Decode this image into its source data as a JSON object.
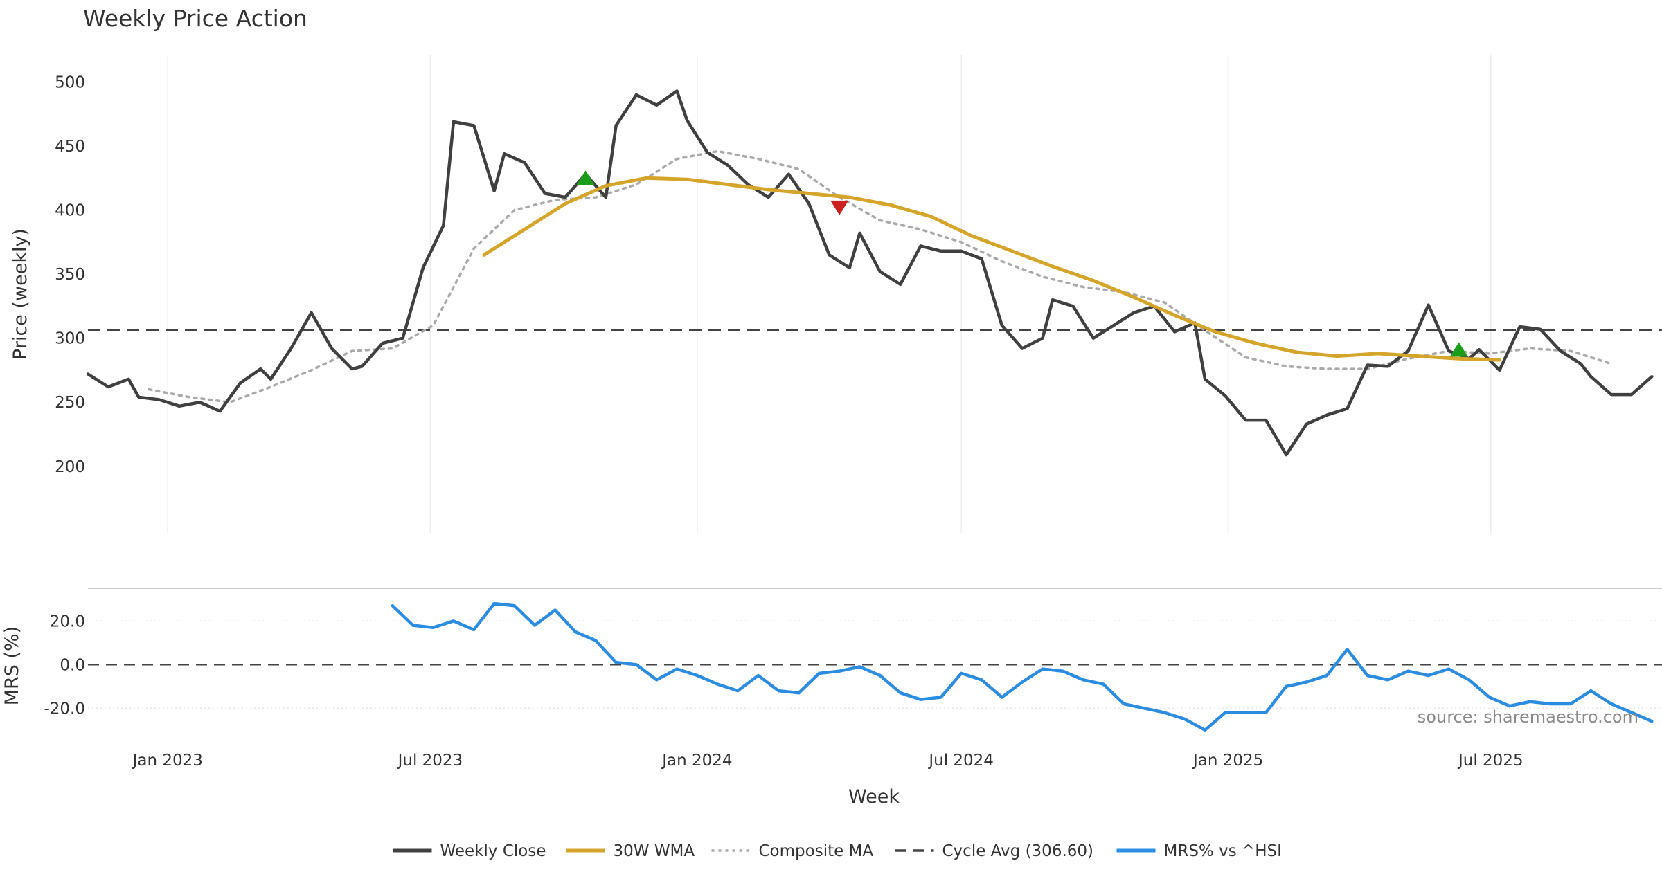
{
  "chart_data": {
    "type": "line",
    "title": "Weekly Price Action",
    "xlabel": "Week",
    "x_range": [
      "2022-11-07",
      "2025-10-27"
    ],
    "x_ticks": [
      {
        "date": "2023-01-01",
        "label": "Jan 2023"
      },
      {
        "date": "2023-07-01",
        "label": "Jul 2023"
      },
      {
        "date": "2024-01-01",
        "label": "Jan 2024"
      },
      {
        "date": "2024-07-01",
        "label": "Jul 2024"
      },
      {
        "date": "2025-01-01",
        "label": "Jan 2025"
      },
      {
        "date": "2025-07-01",
        "label": "Jul 2025"
      }
    ],
    "grid": true,
    "legend_placement": "bottom-center",
    "source": "source: sharemaestro.com",
    "price_panel": {
      "ylabel": "Price (weekly)",
      "ylim": [
        148,
        510
      ],
      "yticks": [
        200,
        250,
        300,
        350,
        400,
        450,
        500
      ],
      "cycle_avg": 306.6,
      "weekly_close": [
        [
          "2022-11-07",
          272
        ],
        [
          "2022-11-21",
          262
        ],
        [
          "2022-12-05",
          268
        ],
        [
          "2022-12-12",
          254
        ],
        [
          "2022-12-26",
          252
        ],
        [
          "2023-01-09",
          247
        ],
        [
          "2023-01-23",
          250
        ],
        [
          "2023-02-06",
          243
        ],
        [
          "2023-02-20",
          265
        ],
        [
          "2023-03-06",
          276
        ],
        [
          "2023-03-13",
          268
        ],
        [
          "2023-03-27",
          292
        ],
        [
          "2023-04-10",
          320
        ],
        [
          "2023-04-24",
          292
        ],
        [
          "2023-05-08",
          276
        ],
        [
          "2023-05-15",
          278
        ],
        [
          "2023-05-29",
          296
        ],
        [
          "2023-06-12",
          300
        ],
        [
          "2023-06-26",
          355
        ],
        [
          "2023-07-10",
          388
        ],
        [
          "2023-07-17",
          469
        ],
        [
          "2023-07-31",
          466
        ],
        [
          "2023-08-14",
          415
        ],
        [
          "2023-08-21",
          444
        ],
        [
          "2023-09-04",
          437
        ],
        [
          "2023-09-18",
          413
        ],
        [
          "2023-10-02",
          410
        ],
        [
          "2023-10-16",
          428
        ],
        [
          "2023-10-30",
          410
        ],
        [
          "2023-11-06",
          466
        ],
        [
          "2023-11-20",
          490
        ],
        [
          "2023-12-04",
          482
        ],
        [
          "2023-12-18",
          493
        ],
        [
          "2023-12-25",
          470
        ],
        [
          "2024-01-08",
          445
        ],
        [
          "2024-01-22",
          435
        ],
        [
          "2024-02-05",
          420
        ],
        [
          "2024-02-19",
          410
        ],
        [
          "2024-03-04",
          428
        ],
        [
          "2024-03-18",
          405
        ],
        [
          "2024-04-01",
          365
        ],
        [
          "2024-04-15",
          355
        ],
        [
          "2024-04-22",
          382
        ],
        [
          "2024-05-06",
          352
        ],
        [
          "2024-05-20",
          342
        ],
        [
          "2024-06-03",
          372
        ],
        [
          "2024-06-17",
          368
        ],
        [
          "2024-07-01",
          368
        ],
        [
          "2024-07-15",
          362
        ],
        [
          "2024-07-29",
          310
        ],
        [
          "2024-08-12",
          292
        ],
        [
          "2024-08-26",
          300
        ],
        [
          "2024-09-02",
          330
        ],
        [
          "2024-09-16",
          325
        ],
        [
          "2024-09-30",
          300
        ],
        [
          "2024-10-14",
          310
        ],
        [
          "2024-10-28",
          320
        ],
        [
          "2024-11-11",
          325
        ],
        [
          "2024-11-25",
          305
        ],
        [
          "2024-12-09",
          312
        ],
        [
          "2024-12-16",
          268
        ],
        [
          "2024-12-30",
          255
        ],
        [
          "2025-01-13",
          236
        ],
        [
          "2025-01-27",
          236
        ],
        [
          "2025-02-10",
          209
        ],
        [
          "2025-02-24",
          233
        ],
        [
          "2025-03-10",
          240
        ],
        [
          "2025-03-24",
          245
        ],
        [
          "2025-04-07",
          279
        ],
        [
          "2025-04-21",
          278
        ],
        [
          "2025-05-05",
          290
        ],
        [
          "2025-05-19",
          326
        ],
        [
          "2025-06-02",
          290
        ],
        [
          "2025-06-16",
          284
        ],
        [
          "2025-06-23",
          291
        ],
        [
          "2025-07-07",
          275
        ],
        [
          "2025-07-21",
          309
        ],
        [
          "2025-08-04",
          307
        ],
        [
          "2025-08-18",
          290
        ],
        [
          "2025-09-01",
          280
        ],
        [
          "2025-09-08",
          270
        ],
        [
          "2025-09-22",
          256
        ],
        [
          "2025-10-06",
          256
        ],
        [
          "2025-10-20",
          270
        ]
      ],
      "wma_30w": [
        [
          "2023-08-07",
          365
        ],
        [
          "2023-09-04",
          385
        ],
        [
          "2023-10-02",
          405
        ],
        [
          "2023-10-30",
          419
        ],
        [
          "2023-11-27",
          425
        ],
        [
          "2023-12-25",
          424
        ],
        [
          "2024-01-22",
          420
        ],
        [
          "2024-02-19",
          416
        ],
        [
          "2024-03-18",
          413
        ],
        [
          "2024-04-15",
          410
        ],
        [
          "2024-05-13",
          404
        ],
        [
          "2024-06-10",
          395
        ],
        [
          "2024-07-08",
          380
        ],
        [
          "2024-08-05",
          368
        ],
        [
          "2024-09-02",
          356
        ],
        [
          "2024-09-30",
          345
        ],
        [
          "2024-10-28",
          332
        ],
        [
          "2024-11-25",
          318
        ],
        [
          "2024-12-23",
          305
        ],
        [
          "2025-01-20",
          296
        ],
        [
          "2025-02-17",
          289
        ],
        [
          "2025-03-17",
          286
        ],
        [
          "2025-04-14",
          288
        ],
        [
          "2025-05-12",
          286
        ],
        [
          "2025-06-09",
          284
        ],
        [
          "2025-07-07",
          283
        ]
      ],
      "composite_ma": [
        [
          "2022-12-19",
          260
        ],
        [
          "2023-01-16",
          254
        ],
        [
          "2023-02-13",
          250
        ],
        [
          "2023-03-13",
          262
        ],
        [
          "2023-04-10",
          275
        ],
        [
          "2023-05-08",
          290
        ],
        [
          "2023-06-05",
          292
        ],
        [
          "2023-07-03",
          310
        ],
        [
          "2023-07-31",
          370
        ],
        [
          "2023-08-28",
          400
        ],
        [
          "2023-09-25",
          408
        ],
        [
          "2023-10-23",
          410
        ],
        [
          "2023-11-20",
          420
        ],
        [
          "2023-12-18",
          440
        ],
        [
          "2024-01-15",
          446
        ],
        [
          "2024-02-12",
          440
        ],
        [
          "2024-03-11",
          432
        ],
        [
          "2024-04-08",
          410
        ],
        [
          "2024-05-06",
          392
        ],
        [
          "2024-06-03",
          385
        ],
        [
          "2024-07-01",
          375
        ],
        [
          "2024-07-29",
          360
        ],
        [
          "2024-08-26",
          348
        ],
        [
          "2024-09-23",
          340
        ],
        [
          "2024-10-21",
          336
        ],
        [
          "2024-11-18",
          328
        ],
        [
          "2024-12-16",
          306
        ],
        [
          "2025-01-13",
          285
        ],
        [
          "2025-02-10",
          278
        ],
        [
          "2025-03-10",
          276
        ],
        [
          "2025-04-07",
          276
        ],
        [
          "2025-05-05",
          284
        ],
        [
          "2025-06-02",
          290
        ],
        [
          "2025-06-30",
          288
        ],
        [
          "2025-07-28",
          292
        ],
        [
          "2025-08-25",
          290
        ],
        [
          "2025-09-22",
          280
        ]
      ],
      "buy_signals": [
        [
          "2023-10-16",
          425
        ],
        [
          "2025-06-09",
          291
        ]
      ],
      "sell_signals": [
        [
          "2024-04-08",
          402
        ]
      ]
    },
    "mrs_panel": {
      "ylabel": "MRS (%)",
      "ylim": [
        -38,
        35
      ],
      "yticks": [
        {
          "value": 20,
          "label": "20.0"
        },
        {
          "value": 0,
          "label": "0.0"
        },
        {
          "value": -20,
          "label": "-20.0"
        }
      ],
      "mrs_vs_hsi": [
        [
          "2023-06-05",
          27
        ],
        [
          "2023-06-19",
          18
        ],
        [
          "2023-07-03",
          17
        ],
        [
          "2023-07-17",
          20
        ],
        [
          "2023-07-31",
          16
        ],
        [
          "2023-08-14",
          28
        ],
        [
          "2023-08-28",
          27
        ],
        [
          "2023-09-11",
          18
        ],
        [
          "2023-09-25",
          25
        ],
        [
          "2023-10-09",
          15
        ],
        [
          "2023-10-23",
          11
        ],
        [
          "2023-11-06",
          1
        ],
        [
          "2023-11-20",
          0
        ],
        [
          "2023-12-04",
          -7
        ],
        [
          "2023-12-18",
          -2
        ],
        [
          "2024-01-01",
          -5
        ],
        [
          "2024-01-15",
          -9
        ],
        [
          "2024-01-29",
          -12
        ],
        [
          "2024-02-12",
          -5
        ],
        [
          "2024-02-26",
          -12
        ],
        [
          "2024-03-11",
          -13
        ],
        [
          "2024-03-25",
          -4
        ],
        [
          "2024-04-08",
          -3
        ],
        [
          "2024-04-22",
          -1
        ],
        [
          "2024-05-06",
          -5
        ],
        [
          "2024-05-20",
          -13
        ],
        [
          "2024-06-03",
          -16
        ],
        [
          "2024-06-17",
          -15
        ],
        [
          "2024-07-01",
          -4
        ],
        [
          "2024-07-15",
          -7
        ],
        [
          "2024-07-29",
          -15
        ],
        [
          "2024-08-12",
          -8
        ],
        [
          "2024-08-26",
          -2
        ],
        [
          "2024-09-09",
          -3
        ],
        [
          "2024-09-23",
          -7
        ],
        [
          "2024-10-07",
          -9
        ],
        [
          "2024-10-21",
          -18
        ],
        [
          "2024-11-04",
          -20
        ],
        [
          "2024-11-18",
          -22
        ],
        [
          "2024-12-02",
          -25
        ],
        [
          "2024-12-16",
          -30
        ],
        [
          "2024-12-30",
          -22
        ],
        [
          "2025-01-13",
          -22
        ],
        [
          "2025-01-27",
          -22
        ],
        [
          "2025-02-10",
          -10
        ],
        [
          "2025-02-24",
          -8
        ],
        [
          "2025-03-10",
          -5
        ],
        [
          "2025-03-24",
          7
        ],
        [
          "2025-04-07",
          -5
        ],
        [
          "2025-04-21",
          -7
        ],
        [
          "2025-05-05",
          -3
        ],
        [
          "2025-05-19",
          -5
        ],
        [
          "2025-06-02",
          -2
        ],
        [
          "2025-06-16",
          -7
        ],
        [
          "2025-06-30",
          -15
        ],
        [
          "2025-07-14",
          -19
        ],
        [
          "2025-07-28",
          -17
        ],
        [
          "2025-08-11",
          -18
        ],
        [
          "2025-08-25",
          -18
        ],
        [
          "2025-09-08",
          -12
        ],
        [
          "2025-09-22",
          -18
        ],
        [
          "2025-10-06",
          -22
        ],
        [
          "2025-10-20",
          -26
        ]
      ]
    },
    "legend": [
      {
        "name": "Weekly Close",
        "color": "#404040",
        "style": "solid"
      },
      {
        "name": "30W WMA",
        "color": "#d4a52a",
        "style": "solid"
      },
      {
        "name": "Composite MA",
        "color": "#aaaaaa",
        "style": "dotted"
      },
      {
        "name": "Cycle Avg (306.60)",
        "color": "#444444",
        "style": "dashed"
      },
      {
        "name": "MRS% vs ^HSI",
        "color": "#2b8ce0",
        "style": "solid"
      }
    ]
  }
}
